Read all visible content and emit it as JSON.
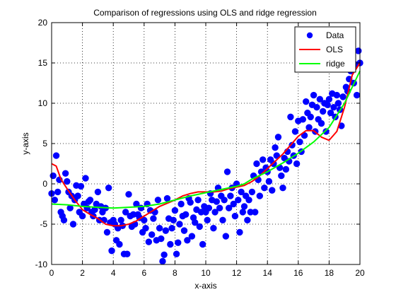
{
  "chart_data": {
    "type": "scatter",
    "title": "Comparison of regressions using OLS and ridge regression",
    "xlabel": "x-axis",
    "ylabel": "y-axis",
    "xlim": [
      0,
      20
    ],
    "ylim": [
      -10,
      20
    ],
    "xticks": [
      0,
      2,
      4,
      6,
      8,
      10,
      12,
      14,
      16,
      18,
      20
    ],
    "yticks": [
      -10,
      -5,
      0,
      5,
      10,
      15,
      20
    ],
    "grid": true,
    "legend_position": "top-right",
    "legend": [
      "Data",
      "OLS",
      "ridge"
    ],
    "series": [
      {
        "name": "Data",
        "kind": "scatter",
        "color": "#0000ff",
        "points": [
          [
            0.0,
            -1.2
          ],
          [
            0.1,
            1.0
          ],
          [
            0.2,
            -2.0
          ],
          [
            0.3,
            3.5
          ],
          [
            0.4,
            -1.0
          ],
          [
            0.5,
            0.5
          ],
          [
            0.6,
            -3.5
          ],
          [
            0.7,
            -4.0
          ],
          [
            0.8,
            -4.5
          ],
          [
            0.9,
            1.3
          ],
          [
            1.0,
            0.3
          ],
          [
            1.1,
            -1.0
          ],
          [
            1.2,
            -3.0
          ],
          [
            1.3,
            -1.5
          ],
          [
            1.4,
            -5.0
          ],
          [
            1.5,
            -2.0
          ],
          [
            1.6,
            -0.2
          ],
          [
            1.7,
            -1.5
          ],
          [
            1.8,
            -3.5
          ],
          [
            1.9,
            -0.3
          ],
          [
            2.0,
            -4.0
          ],
          [
            2.1,
            -2.5
          ],
          [
            2.2,
            0.7
          ],
          [
            2.3,
            -3.0
          ],
          [
            2.4,
            -2.2
          ],
          [
            2.5,
            -2.0
          ],
          [
            2.6,
            -3.5
          ],
          [
            2.7,
            -4.0
          ],
          [
            2.8,
            -3.2
          ],
          [
            2.9,
            -2.5
          ],
          [
            3.0,
            -1.0
          ],
          [
            3.1,
            -4.5
          ],
          [
            3.2,
            -2.8
          ],
          [
            3.3,
            -3.5
          ],
          [
            3.4,
            -4.5
          ],
          [
            3.5,
            -3.0
          ],
          [
            3.6,
            -6.0
          ],
          [
            3.7,
            -0.5
          ],
          [
            3.8,
            -4.8
          ],
          [
            3.9,
            -8.3
          ],
          [
            4.0,
            -4.5
          ],
          [
            4.1,
            -5.0
          ],
          [
            4.2,
            -7.0
          ],
          [
            4.3,
            -5.5
          ],
          [
            4.4,
            -7.5
          ],
          [
            4.5,
            -4.5
          ],
          [
            4.6,
            -5.2
          ],
          [
            4.7,
            -8.7
          ],
          [
            4.8,
            -3.5
          ],
          [
            4.9,
            -8.7
          ],
          [
            5.0,
            -1.3
          ],
          [
            5.1,
            -4.0
          ],
          [
            5.2,
            -5.3
          ],
          [
            5.3,
            -3.8
          ],
          [
            5.4,
            -5.0
          ],
          [
            5.5,
            -2.5
          ],
          [
            5.6,
            -3.8
          ],
          [
            5.7,
            -4.2
          ],
          [
            5.8,
            -3.0
          ],
          [
            5.9,
            -6.0
          ],
          [
            6.0,
            -4.5
          ],
          [
            6.1,
            -5.5
          ],
          [
            6.2,
            -2.5
          ],
          [
            6.3,
            -7.2
          ],
          [
            6.4,
            -3.3
          ],
          [
            6.5,
            -6.3
          ],
          [
            6.6,
            -4.3
          ],
          [
            6.7,
            -3.5
          ],
          [
            6.8,
            -7.0
          ],
          [
            6.9,
            -2.0
          ],
          [
            7.0,
            -5.5
          ],
          [
            7.1,
            -6.8
          ],
          [
            7.2,
            -9.6
          ],
          [
            7.3,
            -8.8
          ],
          [
            7.4,
            -5.8
          ],
          [
            7.5,
            -1.8
          ],
          [
            7.6,
            -4.3
          ],
          [
            7.7,
            -7.5
          ],
          [
            7.8,
            -5.5
          ],
          [
            7.9,
            -4.5
          ],
          [
            8.0,
            -3.3
          ],
          [
            8.1,
            -8.7
          ],
          [
            8.2,
            -7.3
          ],
          [
            8.3,
            -5.0
          ],
          [
            8.4,
            -2.5
          ],
          [
            8.5,
            -4.0
          ],
          [
            8.6,
            -5.8
          ],
          [
            8.7,
            -3.8
          ],
          [
            8.8,
            -7.0
          ],
          [
            8.9,
            -1.8
          ],
          [
            9.0,
            -2.3
          ],
          [
            9.1,
            -6.5
          ],
          [
            9.2,
            -4.2
          ],
          [
            9.3,
            -4.8
          ],
          [
            9.4,
            -3.2
          ],
          [
            9.5,
            -2.0
          ],
          [
            9.6,
            -5.3
          ],
          [
            9.7,
            -3.5
          ],
          [
            9.8,
            -7.5
          ],
          [
            9.9,
            -2.8
          ],
          [
            10.0,
            -3.5
          ],
          [
            10.1,
            -4.5
          ],
          [
            10.2,
            -3.0
          ],
          [
            10.3,
            -1.2
          ],
          [
            10.4,
            -2.0
          ],
          [
            10.5,
            -5.5
          ],
          [
            10.6,
            -3.5
          ],
          [
            10.7,
            -2.2
          ],
          [
            10.8,
            -0.5
          ],
          [
            10.9,
            -3.0
          ],
          [
            11.0,
            -1.5
          ],
          [
            11.1,
            -4.5
          ],
          [
            11.2,
            -2.0
          ],
          [
            11.3,
            -6.5
          ],
          [
            11.4,
            1.5
          ],
          [
            11.5,
            -3.0
          ],
          [
            11.6,
            -1.5
          ],
          [
            11.7,
            -0.5
          ],
          [
            11.8,
            -2.5
          ],
          [
            11.9,
            -4.0
          ],
          [
            12.0,
            0.0
          ],
          [
            12.1,
            -2.0
          ],
          [
            12.2,
            -6.0
          ],
          [
            12.3,
            -1.0
          ],
          [
            12.4,
            -3.5
          ],
          [
            12.5,
            -2.8
          ],
          [
            12.6,
            -1.5
          ],
          [
            12.7,
            -4.5
          ],
          [
            12.8,
            -2.0
          ],
          [
            12.9,
            -3.5
          ],
          [
            13.0,
            -1.0
          ],
          [
            13.1,
            1.0
          ],
          [
            13.2,
            -3.5
          ],
          [
            13.3,
            2.5
          ],
          [
            13.4,
            0.5
          ],
          [
            13.5,
            -1.5
          ],
          [
            13.6,
            1.5
          ],
          [
            13.7,
            3.0
          ],
          [
            13.8,
            -0.5
          ],
          [
            13.9,
            2.0
          ],
          [
            14.0,
            1.5
          ],
          [
            14.1,
            0.3
          ],
          [
            14.2,
            3.0
          ],
          [
            14.3,
            -0.8
          ],
          [
            14.4,
            2.5
          ],
          [
            14.5,
            4.5
          ],
          [
            14.6,
            3.5
          ],
          [
            14.7,
            5.8
          ],
          [
            14.8,
            2.0
          ],
          [
            14.9,
            1.0
          ],
          [
            15.0,
            -0.5
          ],
          [
            15.1,
            3.2
          ],
          [
            15.2,
            1.8
          ],
          [
            15.3,
            4.0
          ],
          [
            15.4,
            2.8
          ],
          [
            15.5,
            8.3
          ],
          [
            15.6,
            4.8
          ],
          [
            15.7,
            3.5
          ],
          [
            15.8,
            6.5
          ],
          [
            15.9,
            2.5
          ],
          [
            16.0,
            7.8
          ],
          [
            16.1,
            5.2
          ],
          [
            16.2,
            4.0
          ],
          [
            16.3,
            8.0
          ],
          [
            16.4,
            6.0
          ],
          [
            16.5,
            10.2
          ],
          [
            16.6,
            8.8
          ],
          [
            16.7,
            7.0
          ],
          [
            16.8,
            8.3
          ],
          [
            16.9,
            9.8
          ],
          [
            17.0,
            11.0
          ],
          [
            17.1,
            6.5
          ],
          [
            17.2,
            9.5
          ],
          [
            17.3,
            8.0
          ],
          [
            17.4,
            10.5
          ],
          [
            17.5,
            7.5
          ],
          [
            17.6,
            9.0
          ],
          [
            17.7,
            10.0
          ],
          [
            17.8,
            6.5
          ],
          [
            17.9,
            9.8
          ],
          [
            18.0,
            10.5
          ],
          [
            18.1,
            8.8
          ],
          [
            18.2,
            11.2
          ],
          [
            18.3,
            9.5
          ],
          [
            18.4,
            8.3
          ],
          [
            18.5,
            11.0
          ],
          [
            18.6,
            10.0
          ],
          [
            18.7,
            9.2
          ],
          [
            18.8,
            7.2
          ],
          [
            18.9,
            10.8
          ],
          [
            19.0,
            14.5
          ],
          [
            19.1,
            12.0
          ],
          [
            19.2,
            11.5
          ],
          [
            19.3,
            13.0
          ],
          [
            19.4,
            14.0
          ],
          [
            19.5,
            16.2
          ],
          [
            19.6,
            12.5
          ],
          [
            19.7,
            14.8
          ],
          [
            19.8,
            11.0
          ],
          [
            19.9,
            16.5
          ],
          [
            20.0,
            15.0
          ]
        ]
      },
      {
        "name": "OLS",
        "kind": "line",
        "color": "#ff0000",
        "points": [
          [
            0.0,
            2.5
          ],
          [
            0.3,
            2.2
          ],
          [
            0.6,
            0.6
          ],
          [
            1.0,
            -0.6
          ],
          [
            1.5,
            -2.0
          ],
          [
            2.0,
            -3.2
          ],
          [
            2.5,
            -3.8
          ],
          [
            3.0,
            -4.3
          ],
          [
            3.5,
            -5.0
          ],
          [
            4.0,
            -5.2
          ],
          [
            4.5,
            -5.2
          ],
          [
            5.0,
            -5.0
          ],
          [
            5.5,
            -4.6
          ],
          [
            6.0,
            -4.0
          ],
          [
            6.5,
            -3.4
          ],
          [
            7.0,
            -2.8
          ],
          [
            7.5,
            -2.4
          ],
          [
            8.0,
            -2.0
          ],
          [
            8.5,
            -1.5
          ],
          [
            9.0,
            -1.2
          ],
          [
            9.5,
            -1.0
          ],
          [
            10.0,
            -1.0
          ],
          [
            10.5,
            -1.0
          ],
          [
            11.0,
            -0.9
          ],
          [
            11.5,
            -0.6
          ],
          [
            12.0,
            -0.4
          ],
          [
            12.5,
            -0.2
          ],
          [
            13.0,
            0.3
          ],
          [
            13.5,
            1.0
          ],
          [
            14.0,
            1.9
          ],
          [
            14.5,
            2.8
          ],
          [
            15.0,
            3.7
          ],
          [
            15.5,
            4.8
          ],
          [
            16.0,
            5.9
          ],
          [
            16.5,
            6.6
          ],
          [
            17.0,
            6.6
          ],
          [
            17.5,
            5.8
          ],
          [
            18.0,
            5.4
          ],
          [
            18.5,
            6.5
          ],
          [
            19.0,
            9.5
          ],
          [
            19.5,
            13.5
          ],
          [
            20.0,
            15.0
          ]
        ]
      },
      {
        "name": "ridge",
        "kind": "line",
        "color": "#00ff00",
        "points": [
          [
            0.0,
            -2.5
          ],
          [
            1.0,
            -2.6
          ],
          [
            2.0,
            -2.8
          ],
          [
            3.0,
            -2.9
          ],
          [
            4.0,
            -3.0
          ],
          [
            5.0,
            -2.9
          ],
          [
            6.0,
            -2.8
          ],
          [
            7.0,
            -2.5
          ],
          [
            8.0,
            -2.0
          ],
          [
            9.0,
            -1.5
          ],
          [
            10.0,
            -1.1
          ],
          [
            11.0,
            -0.7
          ],
          [
            12.0,
            -0.3
          ],
          [
            12.5,
            0.0
          ],
          [
            13.0,
            0.6
          ],
          [
            14.0,
            1.5
          ],
          [
            15.0,
            2.6
          ],
          [
            16.0,
            3.8
          ],
          [
            17.0,
            5.2
          ],
          [
            18.0,
            7.0
          ],
          [
            19.0,
            10.0
          ],
          [
            20.0,
            14.0
          ]
        ]
      }
    ]
  }
}
